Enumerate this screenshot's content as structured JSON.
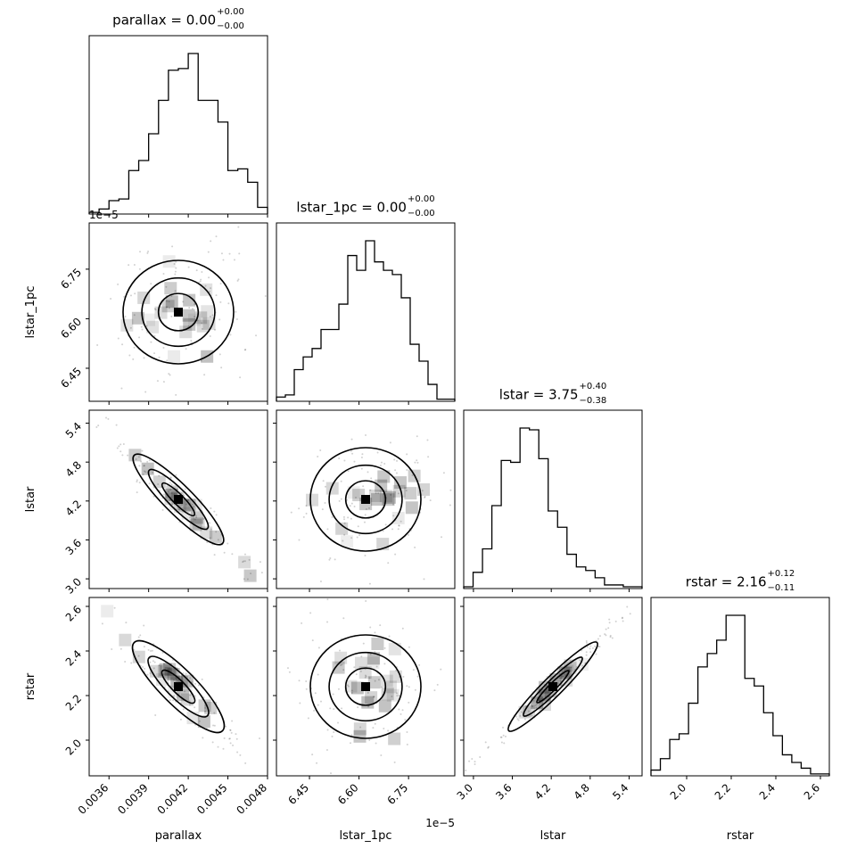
{
  "chart_data": {
    "type": "corner",
    "parameters": [
      {
        "name": "parallax",
        "label": "parallax",
        "range": [
          0.00345,
          0.0048
        ],
        "ticks": [
          0.0036,
          0.0039,
          0.0042,
          0.0045,
          0.0048
        ],
        "tick_labels": [
          "0.0036",
          "0.0039",
          "0.0042",
          "0.0045",
          "0.0048"
        ],
        "title": {
          "prefix": "parallax = 0.00",
          "upper": "+0.00",
          "lower": "−0.00"
        },
        "hist": [
          1,
          3,
          8,
          9,
          26,
          32,
          48,
          68,
          86,
          87,
          96,
          68,
          68,
          55,
          26,
          27,
          19,
          4
        ]
      },
      {
        "name": "lstar_1pc",
        "label": "lstar_1pc",
        "range": [
          6.35,
          6.89
        ],
        "ticks": [
          6.45,
          6.6,
          6.75
        ],
        "tick_labels": [
          "6.45",
          "6.60",
          "6.75"
        ],
        "offset_text": "1e−5",
        "title": {
          "prefix": "lstar_1pc = 0.00",
          "upper": "+0.00",
          "lower": "−0.00"
        },
        "hist": [
          2,
          3,
          15,
          21,
          25,
          34,
          34,
          46,
          69,
          62,
          76,
          66,
          62,
          60,
          49,
          27,
          19,
          8,
          1,
          1
        ]
      },
      {
        "name": "lstar",
        "label": "lstar",
        "range": [
          2.85,
          5.6
        ],
        "ticks": [
          3.0,
          3.6,
          4.2,
          4.8,
          5.4
        ],
        "tick_labels": [
          "3.0",
          "3.6",
          "4.2",
          "4.8",
          "5.4"
        ],
        "title": {
          "prefix": "lstar = 3.75",
          "upper": "+0.40",
          "lower": "−0.38"
        },
        "hist": [
          1,
          9,
          22,
          46,
          71,
          70,
          89,
          88,
          72,
          43,
          34,
          19,
          12,
          10,
          6,
          2,
          2,
          1,
          1
        ]
      },
      {
        "name": "rstar",
        "label": "rstar",
        "range": [
          1.84,
          2.64
        ],
        "ticks": [
          2.0,
          2.2,
          2.4,
          2.6
        ],
        "tick_labels": [
          "2.0",
          "2.2",
          "2.4",
          "2.6"
        ],
        "title": {
          "prefix": "rstar = 2.16",
          "upper": "+0.12",
          "lower": "−0.11"
        },
        "hist": [
          3,
          9,
          19,
          22,
          38,
          57,
          64,
          71,
          84,
          84,
          51,
          47,
          33,
          21,
          11,
          7,
          4,
          1,
          1
        ]
      }
    ],
    "scatter_correlations": [
      [
        0,
        0,
        0,
        0
      ],
      [
        0,
        0,
        0,
        0
      ],
      [
        -0.97,
        0,
        0,
        0
      ],
      [
        -0.95,
        0,
        0.99,
        0
      ]
    ],
    "histogram_style": "step",
    "contour_levels": 4,
    "grid": false
  }
}
